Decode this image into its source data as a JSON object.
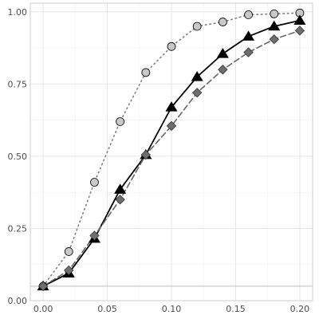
{
  "chart_data": {
    "type": "line",
    "title": "",
    "xlabel": "",
    "ylabel": "",
    "xlim": [
      -0.01,
      0.21
    ],
    "ylim": [
      0.0,
      1.03
    ],
    "x_ticks": [
      0.0,
      0.05,
      0.1,
      0.15,
      0.2
    ],
    "x_tick_labels": [
      "0.00",
      "0.05",
      "0.10",
      "0.15",
      "0.20"
    ],
    "y_ticks": [
      0.0,
      0.25,
      0.5,
      0.75,
      1.0
    ],
    "y_tick_labels": [
      "0.00",
      "0.25",
      "0.50",
      "0.75",
      "1.00"
    ],
    "grid": true,
    "reference_line_y": 0.05,
    "x": [
      0.0,
      0.02,
      0.04,
      0.06,
      0.08,
      0.1,
      0.12,
      0.14,
      0.16,
      0.18,
      0.2
    ],
    "series": [
      {
        "marker": "circle",
        "line_style": "dotted",
        "line_color": "#808080",
        "fill_color": "#c8c8c8",
        "values": [
          0.05,
          0.17,
          0.41,
          0.62,
          0.79,
          0.88,
          0.95,
          0.965,
          0.99,
          0.993,
          0.996
        ]
      },
      {
        "marker": "triangle",
        "line_style": "solid",
        "line_color": "#000000",
        "fill_color": "#000000",
        "values": [
          0.05,
          0.095,
          0.215,
          0.385,
          0.505,
          0.67,
          0.775,
          0.855,
          0.915,
          0.95,
          0.97
        ]
      },
      {
        "marker": "diamond",
        "line_style": "dashed",
        "line_color": "#666666",
        "fill_color": "#6e6e6e",
        "values": [
          0.05,
          0.105,
          0.225,
          0.35,
          0.505,
          0.605,
          0.72,
          0.8,
          0.86,
          0.905,
          0.935
        ]
      }
    ]
  }
}
